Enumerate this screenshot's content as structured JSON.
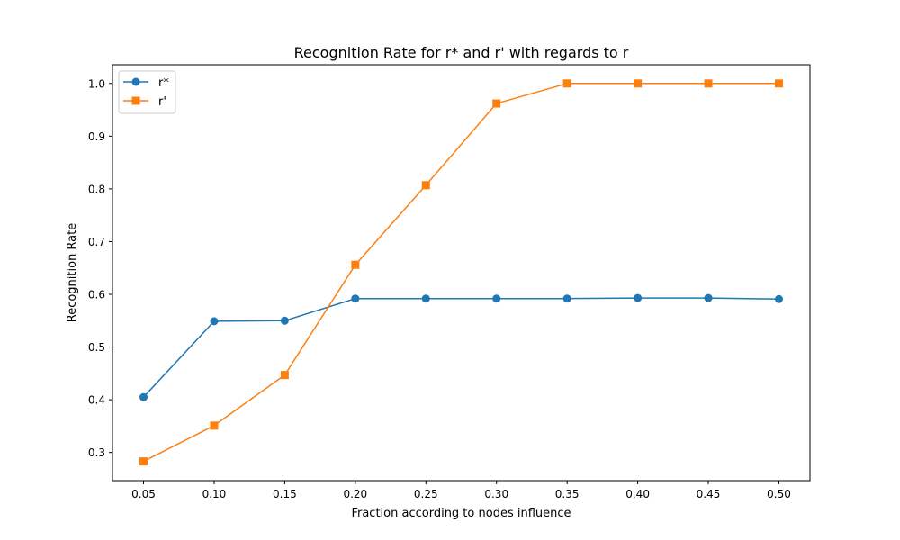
{
  "chart_data": {
    "type": "line",
    "title": "Recognition Rate for r* and r' with regards to r",
    "xlabel": "Fraction according to nodes influence",
    "ylabel": "Recognition Rate",
    "x": [
      0.05,
      0.1,
      0.15,
      0.2,
      0.25,
      0.3,
      0.35,
      0.4,
      0.45,
      0.5
    ],
    "x_tick_labels": [
      "0.05",
      "0.10",
      "0.15",
      "0.20",
      "0.25",
      "0.30",
      "0.35",
      "0.40",
      "0.45",
      "0.50"
    ],
    "y_ticks": [
      0.3,
      0.4,
      0.5,
      0.6,
      0.7,
      0.8,
      0.9,
      1.0
    ],
    "y_tick_labels": [
      "0.3",
      "0.4",
      "0.5",
      "0.6",
      "0.7",
      "0.8",
      "0.9",
      "1.0"
    ],
    "xlim": [
      0.028,
      0.522
    ],
    "ylim": [
      0.2465,
      1.0355
    ],
    "grid": false,
    "legend_position": "upper-left",
    "series": [
      {
        "name": "r*",
        "color": "#1f77b4",
        "marker": "circle",
        "values": [
          0.405,
          0.549,
          0.55,
          0.592,
          0.592,
          0.592,
          0.592,
          0.593,
          0.593,
          0.591
        ]
      },
      {
        "name": "r'",
        "color": "#ff7f0e",
        "marker": "square",
        "values": [
          0.283,
          0.351,
          0.447,
          0.656,
          0.807,
          0.962,
          1.0,
          1.0,
          1.0,
          1.0
        ]
      }
    ]
  }
}
